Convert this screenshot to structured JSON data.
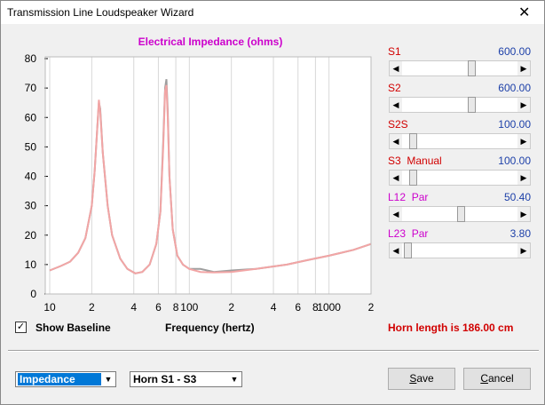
{
  "window": {
    "title": "Transmission Line Loudspeaker Wizard",
    "close": "✕"
  },
  "chart_data": {
    "type": "line",
    "title": "Electrical Impedance (ohms)",
    "xlabel": "Frequency (hertz)",
    "log_x": true,
    "grid": true,
    "xlim": [
      10,
      2000
    ],
    "xticks": [
      10,
      {
        "value": 20,
        "label": "2"
      },
      {
        "value": 40,
        "label": "4"
      },
      {
        "value": 60,
        "label": "6"
      },
      {
        "value": 80,
        "label": "8"
      },
      100,
      {
        "value": 200,
        "label": "2"
      },
      {
        "value": 400,
        "label": "4"
      },
      {
        "value": 600,
        "label": "6"
      },
      {
        "value": 800,
        "label": "8"
      },
      1000,
      {
        "value": 2000,
        "label": "2"
      }
    ],
    "ylim": [
      0,
      80
    ],
    "yticks": [
      0,
      10,
      20,
      30,
      40,
      50,
      60,
      70,
      80
    ],
    "x": [
      10,
      12,
      14,
      16,
      18,
      20,
      21,
      22,
      22.5,
      23,
      24,
      26,
      28,
      32,
      36,
      41,
      46,
      52,
      58,
      62,
      65,
      67,
      68.5,
      70,
      72,
      76,
      82,
      90,
      100,
      120,
      150,
      200,
      300,
      500,
      700,
      1000,
      1500,
      2000
    ],
    "series": [
      {
        "color": "#9e9e9e",
        "values": [
          8,
          9.5,
          11,
          14,
          19,
          30,
          42,
          58,
          65,
          63,
          48,
          30,
          20,
          12,
          8.5,
          7,
          7.5,
          10,
          17,
          28,
          52,
          70,
          73,
          62,
          40,
          22,
          13,
          10,
          8.5,
          8.5,
          7.5,
          8,
          8.5,
          10,
          11.5,
          13,
          15,
          17
        ]
      },
      {
        "color": "#f2a5a5",
        "values": [
          8,
          9.5,
          11,
          14,
          19,
          30,
          42,
          58,
          66,
          62,
          48,
          30,
          20,
          12,
          8.5,
          7,
          7.5,
          10,
          17,
          28,
          50,
          69,
          71,
          60,
          40,
          22,
          13,
          10,
          8.5,
          7.5,
          7.3,
          7.5,
          8.5,
          10,
          11.5,
          13,
          15,
          17
        ]
      }
    ]
  },
  "sliders": [
    {
      "label": "S1",
      "value": "600.00",
      "color": "#d10000"
    },
    {
      "label": "S2",
      "value": "600.00",
      "color": "#d10000"
    },
    {
      "label": "S2S",
      "value": "100.00",
      "color": "#d10000"
    },
    {
      "label": "S3  Manual",
      "value": "100.00",
      "color": "#d10000"
    },
    {
      "label": "L12  Par",
      "value": "50.40",
      "color": "#cc00cc"
    },
    {
      "label": "L23  Par",
      "value": "3.80",
      "color": "#cc00cc"
    }
  ],
  "controls": {
    "checkbox": "Show Baseline",
    "horn_length": "Horn length is 186.00 cm",
    "dropdown1": "Impedance",
    "dropdown2": "Horn S1 - S3",
    "save": "Save",
    "cancel": "Cancel"
  }
}
